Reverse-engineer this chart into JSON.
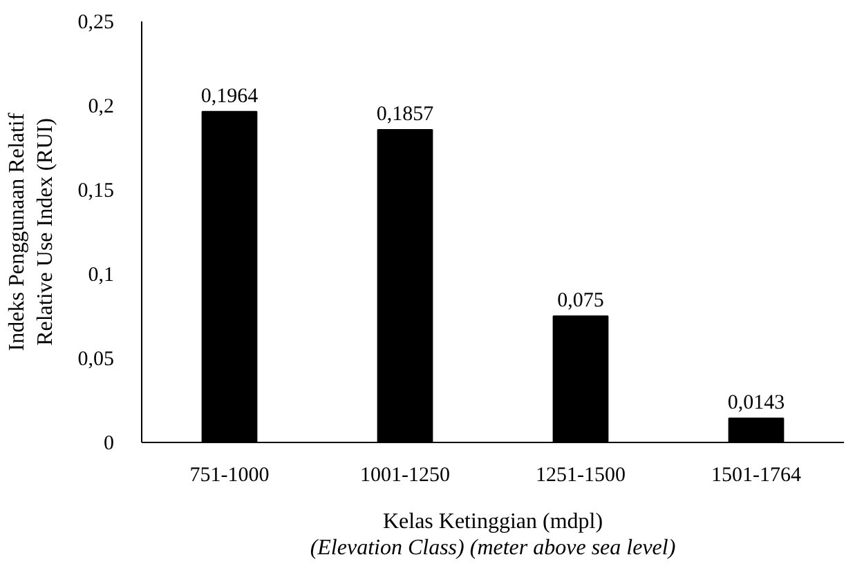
{
  "chart_data": {
    "type": "bar",
    "ylabel": "Indeks Penggunaan Relatif\nRelative Use Index (RUI)",
    "xlabel": "Kelas Ketinggian (mdpl)\n(Elevation Class) (meter above sea level)",
    "categories": [
      "751-1000",
      "1001-1250",
      "1251-1500",
      "1501-1764"
    ],
    "values": [
      0.1964,
      0.1857,
      0.075,
      0.0143
    ],
    "value_labels": [
      "0,1964",
      "0,1857",
      "0,075",
      "0,0143"
    ],
    "color": "#000000",
    "ylim": [
      0,
      0.25
    ],
    "yticks": [
      0,
      {
        "value": 0.05,
        "label": "0,05"
      },
      {
        "value": 0.1,
        "label": "0,1"
      },
      {
        "value": 0.15,
        "label": "0,15"
      },
      {
        "value": 0.2,
        "label": "0,2"
      },
      {
        "value": 0.25,
        "label": "0,25"
      }
    ],
    "grid": false
  }
}
